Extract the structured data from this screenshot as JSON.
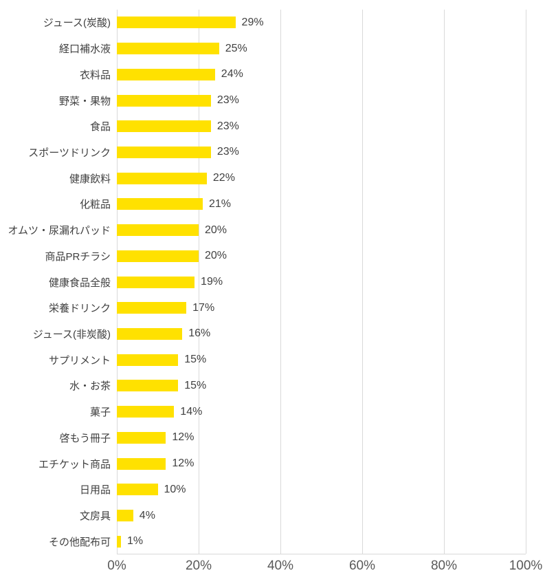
{
  "chart_data": {
    "type": "bar",
    "orientation": "horizontal",
    "title": "",
    "xlabel": "",
    "ylabel": "",
    "categories": [
      "ジュース(炭酸)",
      "経口補水液",
      "衣料品",
      "野菜・果物",
      "食品",
      "スポーツドリンク",
      "健康飲料",
      "化粧品",
      "オムツ・尿漏れパッド",
      "商品PRチラシ",
      "健康食品全般",
      "栄養ドリンク",
      "ジュース(非炭酸)",
      "サプリメント",
      "水・お茶",
      "菓子",
      "啓もう冊子",
      "エチケット商品",
      "日用品",
      "文房具",
      "その他配布可"
    ],
    "values": [
      29,
      25,
      24,
      23,
      23,
      23,
      22,
      21,
      20,
      20,
      19,
      17,
      16,
      15,
      15,
      14,
      12,
      12,
      10,
      4,
      1
    ],
    "value_labels": [
      "29%",
      "25%",
      "24%",
      "23%",
      "23%",
      "23%",
      "22%",
      "21%",
      "20%",
      "20%",
      "19%",
      "17%",
      "16%",
      "15%",
      "15%",
      "14%",
      "12%",
      "12%",
      "10%",
      "4%",
      "1%"
    ],
    "xlim": [
      0,
      100
    ],
    "x_ticks": [
      0,
      20,
      40,
      60,
      80,
      100
    ],
    "x_tick_labels": [
      "0%",
      "20%",
      "40%",
      "60%",
      "80%",
      "100%"
    ],
    "grid": "vertical",
    "legend": "none",
    "colors": {
      "bar": "#ffe100",
      "gridline": "#d9d9d9",
      "category_label": "#404040",
      "value_label": "#404040",
      "tick_label": "#595959",
      "background": "#ffffff"
    }
  }
}
